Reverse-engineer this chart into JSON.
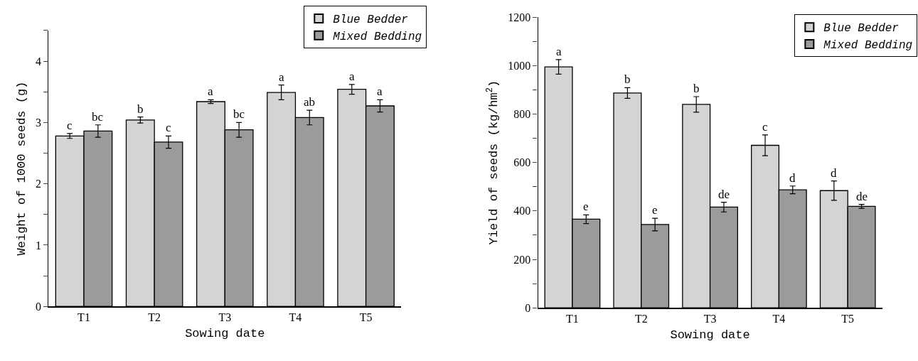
{
  "chart_data": [
    {
      "type": "bar",
      "xlabel": "Sowing date",
      "ylabel": "Weight of 1000 seeds (g)",
      "categories": [
        "T1",
        "T2",
        "T3",
        "T4",
        "T5"
      ],
      "series": [
        {
          "name": "Blue Bedder",
          "color": "#d3d4d3",
          "values": [
            2.78,
            3.04,
            3.34,
            3.49,
            3.54
          ],
          "errors": [
            0.04,
            0.05,
            0.03,
            0.12,
            0.08
          ],
          "value_labels": [
            "c",
            "b",
            "a",
            "a",
            "a"
          ]
        },
        {
          "name": "Mixed Bedding",
          "color": "#9b9b9b",
          "values": [
            2.86,
            2.68,
            2.88,
            3.08,
            3.27
          ],
          "errors": [
            0.1,
            0.1,
            0.12,
            0.12,
            0.1
          ],
          "value_labels": [
            "bc",
            "c",
            "bc",
            "ab",
            "a"
          ]
        }
      ],
      "ylim": [
        0,
        4.5
      ],
      "yticks": [
        0,
        {
          "value": 0.5,
          "label": null
        },
        1,
        {
          "value": 1.5,
          "label": null
        },
        2,
        {
          "value": 2.5,
          "label": null
        },
        3,
        {
          "value": 3.5,
          "label": null
        },
        4,
        {
          "value": 4.5,
          "label": null
        }
      ],
      "legend": "top right"
    },
    {
      "type": "bar",
      "xlabel": "Sowing date",
      "ylabel": "Yield of seeds (kg/hm$^{2}$)",
      "categories": [
        "T1",
        "T2",
        "T3",
        "T4",
        "T5"
      ],
      "series": [
        {
          "name": "Blue Bedder",
          "color": "#d3d4d3",
          "values": [
            995,
            887,
            840,
            671,
            484
          ],
          "errors": [
            30,
            22,
            32,
            43,
            40
          ],
          "value_labels": [
            "a",
            "b",
            "b",
            "c",
            "d"
          ]
        },
        {
          "name": "Mixed Bedding",
          "color": "#9b9b9b",
          "values": [
            366,
            344,
            416,
            487,
            419
          ],
          "errors": [
            18,
            26,
            20,
            16,
            8
          ],
          "value_labels": [
            "e",
            "e",
            "de",
            "d",
            "de"
          ]
        }
      ],
      "ylim": [
        0,
        1200
      ],
      "yticks": [
        0,
        {
          "value": 100,
          "label": null
        },
        200,
        {
          "value": 300,
          "label": null
        },
        400,
        {
          "value": 500,
          "label": null
        },
        600,
        {
          "value": 700,
          "label": null
        },
        800,
        {
          "value": 900,
          "label": null
        },
        1000,
        {
          "value": 1100,
          "label": null
        },
        1200
      ],
      "legend": "top right"
    }
  ]
}
